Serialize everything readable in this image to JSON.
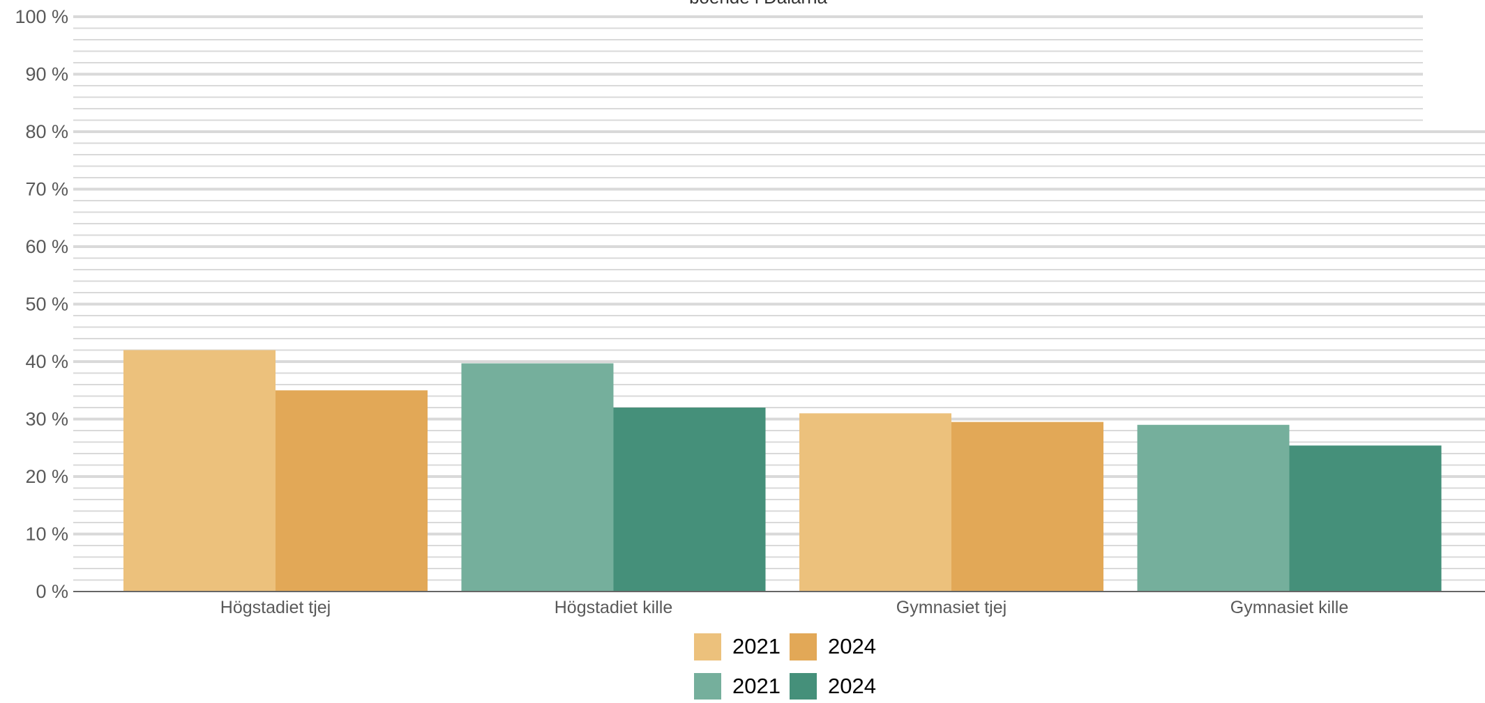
{
  "chart_data": {
    "type": "bar",
    "title": "boende i Dalarna",
    "xlabel": "",
    "ylabel": "",
    "ylim": [
      0,
      100
    ],
    "y_ticks": [
      {
        "value": 0,
        "label": "0 %"
      },
      {
        "value": 10,
        "label": "10 %"
      },
      {
        "value": 20,
        "label": "20 %"
      },
      {
        "value": 30,
        "label": "30 %"
      },
      {
        "value": 40,
        "label": "40 %"
      },
      {
        "value": 50,
        "label": "50 %"
      },
      {
        "value": 60,
        "label": "60 %"
      },
      {
        "value": 70,
        "label": "70 %"
      },
      {
        "value": 80,
        "label": "80 %"
      },
      {
        "value": 90,
        "label": "90 %"
      },
      {
        "value": 100,
        "label": "100 %"
      }
    ],
    "minor_gridlines_per_major": 4,
    "grid": true,
    "categories": [
      "Högstadiet tjej",
      "Högstadiet kille",
      "Gymnasiet tjej",
      "Gymnasiet kille"
    ],
    "bars": [
      {
        "category": "Högstadiet tjej",
        "year": "2021",
        "value": 42,
        "color": "#ecc17c"
      },
      {
        "category": "Högstadiet tjej",
        "year": "2024",
        "value": 35,
        "color": "#e2a857"
      },
      {
        "category": "Högstadiet kille",
        "year": "2021",
        "value": 39.7,
        "color": "#75af9c"
      },
      {
        "category": "Högstadiet kille",
        "year": "2024",
        "value": 32,
        "color": "#45907a"
      },
      {
        "category": "Gymnasiet tjej",
        "year": "2021",
        "value": 31,
        "color": "#ecc17c"
      },
      {
        "category": "Gymnasiet tjej",
        "year": "2024",
        "value": 29.5,
        "color": "#e2a857"
      },
      {
        "category": "Gymnasiet kille",
        "year": "2021",
        "value": 29,
        "color": "#75af9c"
      },
      {
        "category": "Gymnasiet kille",
        "year": "2024",
        "value": 25.4,
        "color": "#45907a"
      }
    ],
    "legend": {
      "placement": "bottom",
      "rows": [
        [
          {
            "label": "2021",
            "color": "#ecc17c"
          },
          {
            "label": "2024",
            "color": "#e2a857"
          }
        ],
        [
          {
            "label": "2021",
            "color": "#75af9c"
          },
          {
            "label": "2024",
            "color": "#45907a"
          }
        ]
      ]
    },
    "colors": {
      "gridline": "#d9d9d9",
      "axis": "#666666",
      "tick_text": "#595959",
      "legend_text": "#000000"
    }
  }
}
